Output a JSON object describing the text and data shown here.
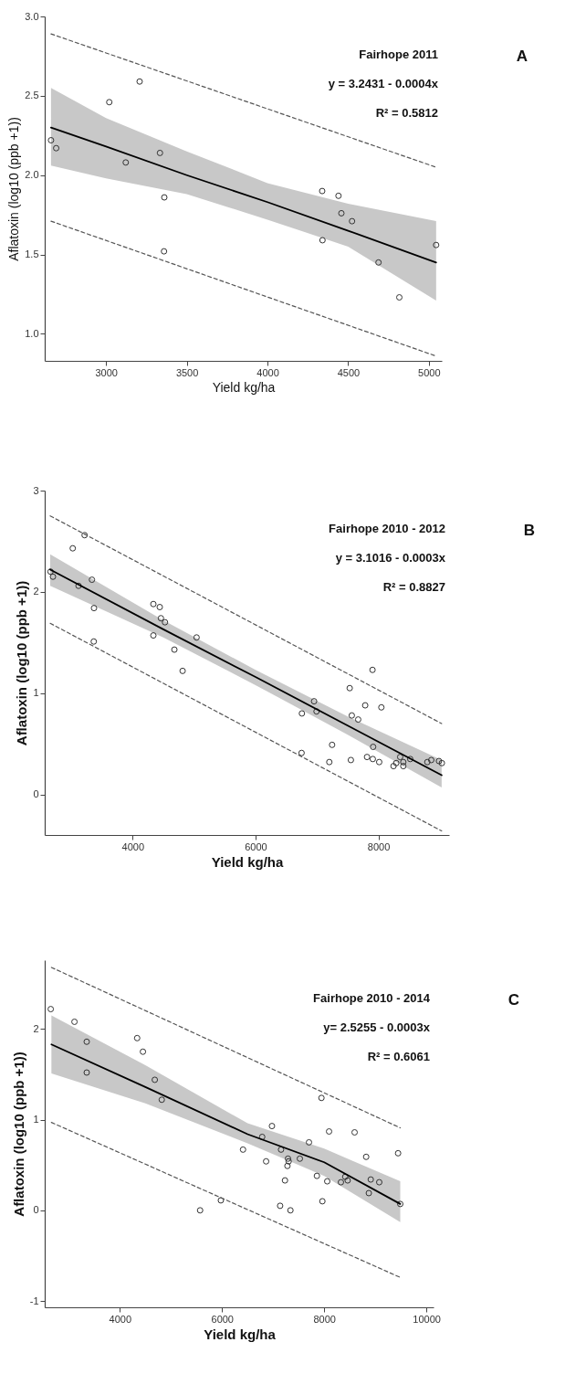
{
  "chart_data": [
    {
      "type": "scatter",
      "xlabel": "Yield kg/ha",
      "ylabel": "Aflatoxin (log10 (ppb +1))",
      "annotations": [
        "Fairhope 2011",
        "y = 3.2431 - 0.0004x",
        "R² = 0.5812",
        "A"
      ],
      "xlim": [
        2620,
        5080
      ],
      "ylim": [
        0.83,
        3.0
      ],
      "xticks": [
        3000,
        3500,
        4000,
        4500,
        5000
      ],
      "yticks": [
        {
          "value": 1,
          "label": "1.0"
        },
        1.5,
        {
          "value": 2,
          "label": "2.0"
        },
        2.5,
        {
          "value": 3,
          "label": "3.0"
        }
      ],
      "grid": false,
      "marker": "circle",
      "series": [
        {
          "color": "#333333",
          "x": [
            2659,
            2691,
            3020,
            3208,
            3122,
            3334,
            3361,
            3359,
            4339,
            4440,
            4458,
            4524,
            4341,
            4688,
            4817,
            5045
          ],
          "values": [
            2.22,
            2.17,
            2.46,
            2.59,
            2.08,
            2.14,
            1.86,
            1.52,
            1.9,
            1.87,
            1.76,
            1.71,
            1.59,
            1.45,
            1.23,
            1.56
          ]
        },
        {
          "type": "line",
          "marker": "none",
          "color": "#000000",
          "line_style": "solid",
          "x": [
            2659,
            3000,
            3500,
            4000,
            4500,
            5045
          ],
          "values": [
            2.3,
            2.18,
            2.0,
            1.83,
            1.65,
            1.45
          ],
          "lower": [
            2.06,
            1.98,
            1.88,
            1.72,
            1.55,
            1.21
          ],
          "upper": [
            2.55,
            2.36,
            2.15,
            1.95,
            1.82,
            1.71
          ]
        },
        {
          "type": "line",
          "marker": "none",
          "color": "#555555",
          "line_style": "dashed",
          "x": [
            2659,
            5045
          ],
          "values": [
            2.89,
            2.05
          ]
        },
        {
          "type": "line",
          "marker": "none",
          "color": "#555555",
          "line_style": "dashed",
          "x": [
            2659,
            5045
          ],
          "values": [
            1.71,
            0.86
          ]
        }
      ]
    },
    {
      "type": "scatter",
      "xlabel": "Yield kg/ha",
      "ylabel": "Aflatoxin (log10 (ppb +1))",
      "annotations": [
        "Fairhope 2010 - 2012",
        "y = 3.1016 - 0.0003x",
        "R² = 0.8827",
        "B"
      ],
      "xlim": [
        2570,
        9150
      ],
      "ylim": [
        -0.4,
        3.0
      ],
      "xticks": [
        4000,
        6000,
        8000
      ],
      "yticks": [
        0,
        1,
        2,
        3
      ],
      "grid": false,
      "marker": "circle",
      "series": [
        {
          "color": "#333333",
          "x": [
            2664,
            2704,
            3026,
            3219,
            3120,
            3338,
            3372,
            3368,
            4338,
            4442,
            4461,
            4527,
            4338,
            4680,
            4814,
            5041,
            7904,
            7533,
            6953,
            6755,
            6993,
            7785,
            8048,
            7567,
            7671,
            7246,
            6750,
            7201,
            7552,
            7914,
            7815,
            7909,
            8013,
            8246,
            8290,
            8354,
            8405,
            8405,
            8518,
            8796,
            8860,
            8985,
            9033
          ],
          "values": [
            2.2,
            2.15,
            2.43,
            2.56,
            2.06,
            2.12,
            1.84,
            1.51,
            1.88,
            1.85,
            1.74,
            1.7,
            1.57,
            1.43,
            1.22,
            1.55,
            1.23,
            1.05,
            0.92,
            0.8,
            0.82,
            0.88,
            0.86,
            0.78,
            0.74,
            0.49,
            0.41,
            0.32,
            0.34,
            0.47,
            0.37,
            0.35,
            0.32,
            0.28,
            0.31,
            0.37,
            0.32,
            0.28,
            0.35,
            0.32,
            0.34,
            0.33,
            0.31
          ]
        },
        {
          "type": "line",
          "marker": "none",
          "color": "#000000",
          "line_style": "solid",
          "x": [
            2659,
            4500,
            6000,
            7500,
            9029
          ],
          "values": [
            2.22,
            1.63,
            1.16,
            0.68,
            0.19
          ],
          "lower": [
            2.06,
            1.55,
            1.08,
            0.59,
            0.07
          ],
          "upper": [
            2.37,
            1.72,
            1.23,
            0.77,
            0.34
          ]
        },
        {
          "type": "line",
          "marker": "none",
          "color": "#555555",
          "line_style": "dashed",
          "x": [
            2659,
            9029
          ],
          "values": [
            2.75,
            0.7
          ]
        },
        {
          "type": "line",
          "marker": "none",
          "color": "#555555",
          "line_style": "dashed",
          "x": [
            2659,
            9029
          ],
          "values": [
            1.69,
            -0.36
          ]
        }
      ]
    },
    {
      "type": "scatter",
      "xlabel": "Yield kg/ha",
      "ylabel": "Aflatoxin (log10 (ppb +1))",
      "annotations": [
        "Fairhope 2010 - 2014",
        "y= 2.5255 - 0.0003x",
        "R² = 0.6061",
        "C"
      ],
      "xlim": [
        2530,
        10140
      ],
      "ylim": [
        -1.07,
        2.76
      ],
      "xticks": [
        4000,
        6000,
        8000,
        10000
      ],
      "yticks": [
        -1,
        0,
        1,
        2
      ],
      "grid": false,
      "marker": "circle",
      "series": [
        {
          "color": "#333333",
          "x": [
            2648,
            3112,
            3352,
            3352,
            4339,
            4452,
            4684,
            4821,
            5571,
            5977,
            6411,
            6786,
            6863,
            6977,
            7155,
            7291,
            7304,
            7280,
            7232,
            7137,
            7339,
            7523,
            7702,
            7946,
            8095,
            7857,
            8059,
            7964,
            8327,
            8411,
            8459,
            8595,
            8821,
            8911,
            8873,
            9077,
            9446,
            9488
          ],
          "values": [
            2.22,
            2.08,
            1.86,
            1.52,
            1.9,
            1.75,
            1.44,
            1.22,
            0.0,
            0.11,
            0.67,
            0.81,
            0.54,
            0.93,
            0.67,
            0.57,
            0.54,
            0.49,
            0.33,
            0.05,
            0.0,
            0.57,
            0.75,
            1.24,
            0.87,
            0.38,
            0.32,
            0.1,
            0.31,
            0.37,
            0.33,
            0.86,
            0.59,
            0.34,
            0.19,
            0.31,
            0.63,
            0.07
          ]
        },
        {
          "type": "line",
          "marker": "none",
          "color": "#000000",
          "line_style": "solid",
          "x": [
            2661,
            4500,
            6500,
            8000,
            9488
          ],
          "values": [
            1.83,
            1.36,
            0.84,
            0.53,
            0.07
          ],
          "lower": [
            1.51,
            1.18,
            0.74,
            0.38,
            -0.13
          ],
          "upper": [
            2.15,
            1.6,
            0.96,
            0.68,
            0.32
          ]
        },
        {
          "type": "line",
          "marker": "none",
          "color": "#555555",
          "line_style": "dashed",
          "x": [
            2661,
            9488
          ],
          "values": [
            2.68,
            0.91
          ]
        },
        {
          "type": "line",
          "marker": "none",
          "color": "#555555",
          "line_style": "dashed",
          "x": [
            2661,
            9488
          ],
          "values": [
            0.97,
            -0.74
          ]
        }
      ]
    }
  ]
}
